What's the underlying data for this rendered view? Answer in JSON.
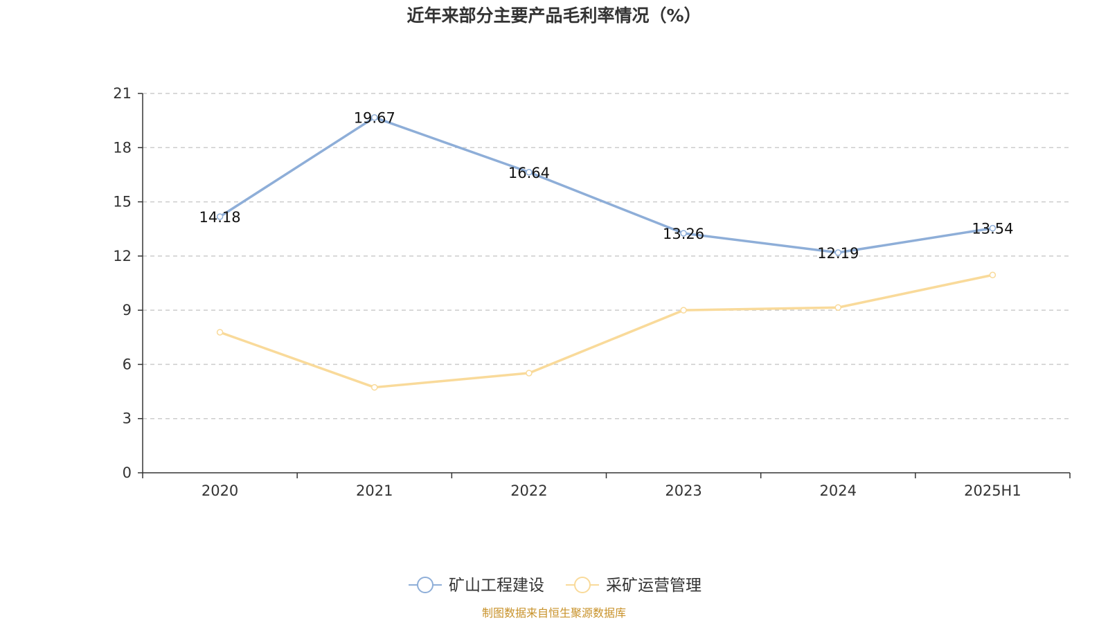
{
  "chart_data": {
    "type": "line",
    "title": "近年来部分主要产品毛利率情况（%）",
    "xlabel": "",
    "ylabel": "",
    "categories": [
      "2020",
      "2021",
      "2022",
      "2023",
      "2024",
      "2025H1"
    ],
    "ylim": [
      0,
      21
    ],
    "yticks": [
      0,
      3,
      6,
      9,
      12,
      15,
      18,
      21
    ],
    "grid": true,
    "legend_position": "bottom",
    "series": [
      {
        "name": "矿山工程建设",
        "color": "#8eaed8",
        "values": [
          14.18,
          19.67,
          16.64,
          13.26,
          12.19,
          13.54
        ],
        "labels": [
          "14.18",
          "19.67",
          "16.64",
          "13.26",
          "12.19",
          "13.54"
        ],
        "show_labels": true
      },
      {
        "name": "采矿运营管理",
        "color": "#f9da9a",
        "values": [
          7.78,
          4.73,
          5.52,
          9.0,
          9.15,
          10.95
        ],
        "show_labels": false
      }
    ]
  },
  "source_text": "制图数据来自恒生聚源数据库",
  "source_color": "#c8922a"
}
